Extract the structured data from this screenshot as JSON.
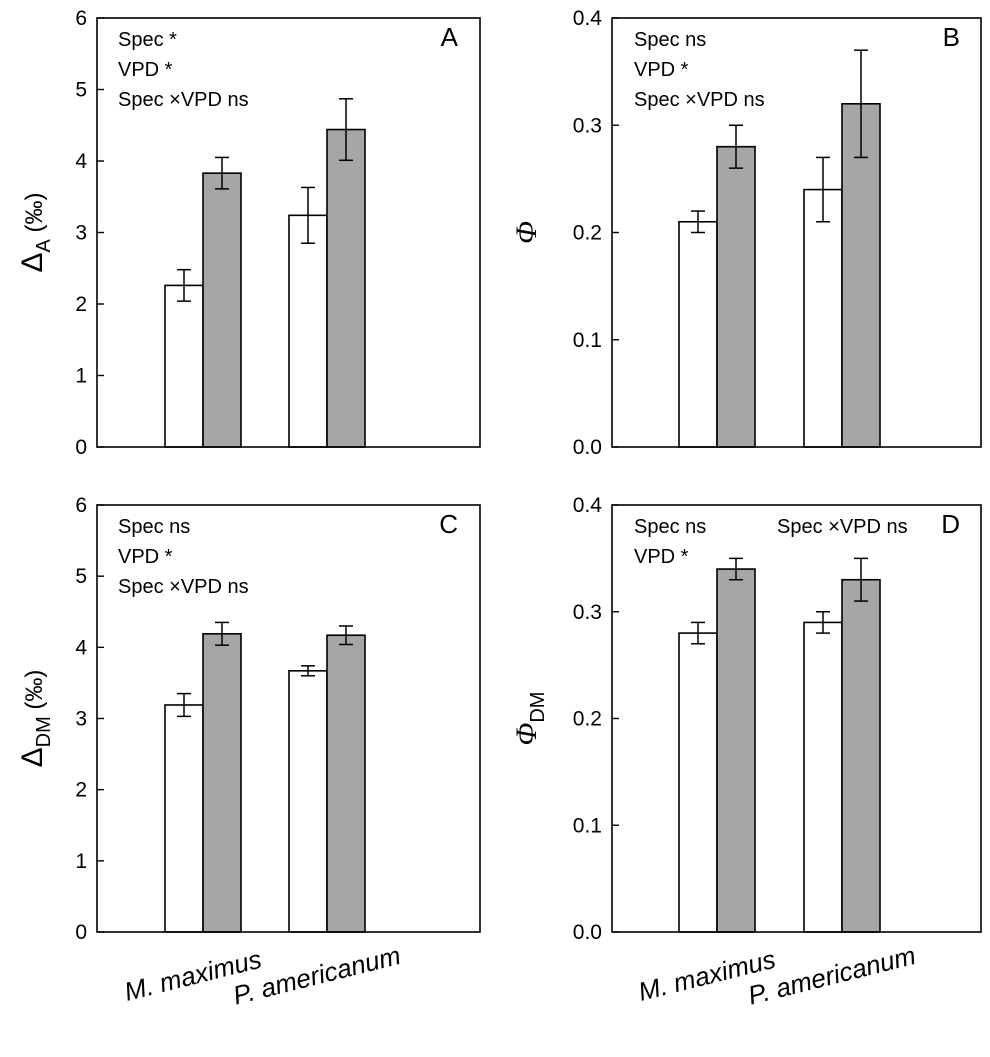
{
  "colors": {
    "treatment_1": "#ffffff",
    "treatment_2": "#a6a6a6",
    "stroke": "#000000"
  },
  "chart_data": [
    {
      "panel": "A",
      "type": "bar",
      "ylabel": {
        "main": "Δ",
        "sub": "A",
        "suffix": " (‰)",
        "italic": false
      },
      "ylim": [
        0,
        6
      ],
      "yticks": [
        "0",
        "1",
        "2",
        "3",
        "4",
        "5",
        "6"
      ],
      "categories": [
        "M. maximus",
        "P. americanum"
      ],
      "series": [
        {
          "color": "#ffffff",
          "values": [
            2.26,
            3.24
          ],
          "errors": [
            0.22,
            0.39
          ]
        },
        {
          "color": "#a6a6a6",
          "values": [
            3.83,
            4.44
          ],
          "errors": [
            0.22,
            0.43
          ]
        }
      ],
      "annotations": [
        "Spec *",
        "VPD *",
        "Spec ×VPD ns"
      ]
    },
    {
      "panel": "B",
      "type": "bar",
      "ylabel": {
        "main": "Φ",
        "sub": "",
        "suffix": "",
        "italic": true
      },
      "ylim": [
        0,
        0.4
      ],
      "yticks": [
        "0.0",
        "0.1",
        "0.2",
        "0.3",
        "0.4"
      ],
      "categories": [
        "M. maximus",
        "P. americanum"
      ],
      "series": [
        {
          "color": "#ffffff",
          "values": [
            0.21,
            0.24
          ],
          "errors": [
            0.01,
            0.03
          ]
        },
        {
          "color": "#a6a6a6",
          "values": [
            0.28,
            0.32
          ],
          "errors": [
            0.02,
            0.05
          ]
        }
      ],
      "annotations": [
        "Spec ns",
        "VPD *",
        "Spec ×VPD ns"
      ]
    },
    {
      "panel": "C",
      "type": "bar",
      "ylabel": {
        "main": "Δ",
        "sub": "DM",
        "suffix": " (‰)",
        "italic": false
      },
      "ylim": [
        0,
        6
      ],
      "yticks": [
        "0",
        "1",
        "2",
        "3",
        "4",
        "5",
        "6"
      ],
      "categories": [
        "M. maximus",
        "P. americanum"
      ],
      "series": [
        {
          "color": "#ffffff",
          "values": [
            3.19,
            3.67
          ],
          "errors": [
            0.16,
            0.07
          ]
        },
        {
          "color": "#a6a6a6",
          "values": [
            4.19,
            4.17
          ],
          "errors": [
            0.16,
            0.13
          ]
        }
      ],
      "annotations": [
        "Spec ns",
        "VPD *",
        "Spec ×VPD ns"
      ]
    },
    {
      "panel": "D",
      "type": "bar",
      "ylabel": {
        "main": "Φ",
        "sub": "DM",
        "suffix": "",
        "italic": true
      },
      "ylim": [
        0,
        0.4
      ],
      "yticks": [
        "0.0",
        "0.1",
        "0.2",
        "0.3",
        "0.4"
      ],
      "categories": [
        "M. maximus",
        "P. americanum"
      ],
      "series": [
        {
          "color": "#ffffff",
          "values": [
            0.28,
            0.29
          ],
          "errors": [
            0.01,
            0.01
          ]
        },
        {
          "color": "#a6a6a6",
          "values": [
            0.34,
            0.33
          ],
          "errors": [
            0.01,
            0.02
          ]
        }
      ],
      "annotations": [
        "Spec ns",
        "VPD *",
        "Spec ×VPD ns"
      ]
    }
  ]
}
